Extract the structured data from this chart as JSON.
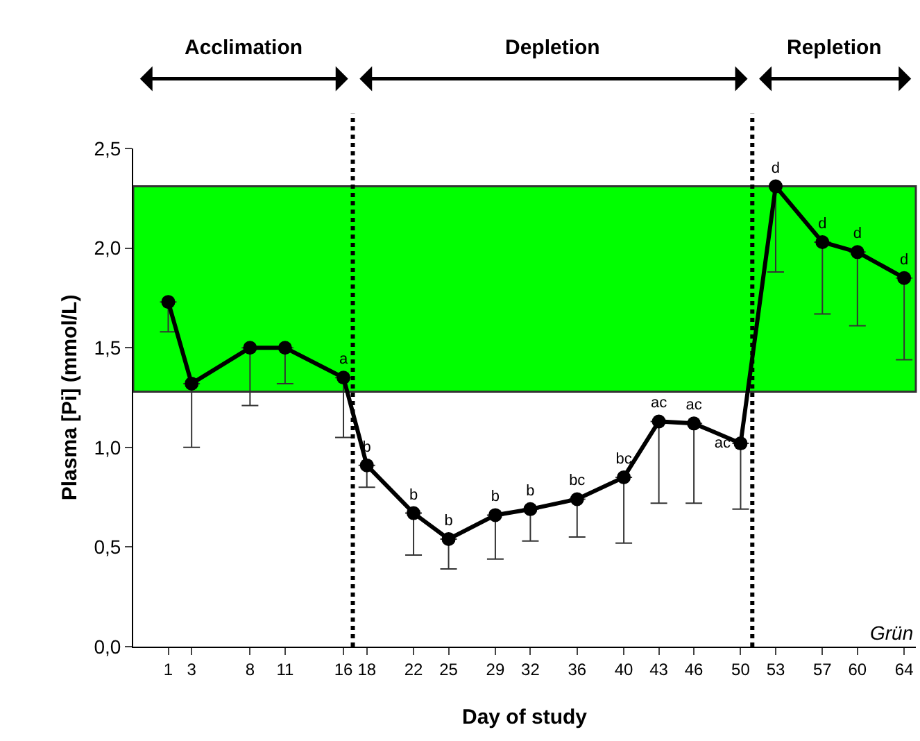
{
  "chart_data": {
    "type": "line",
    "xlabel": "Day of study",
    "ylabel": "Plasma [Pi] (mmol/L)",
    "annotations": [
      "Acclimation",
      "Depletion",
      "Repletion",
      "Grün"
    ],
    "x": [
      1,
      3,
      8,
      11,
      16,
      18,
      22,
      25,
      29,
      32,
      36,
      40,
      43,
      46,
      50,
      53,
      57,
      60,
      64
    ],
    "series": [
      {
        "color": "#000000",
        "values": [
          1.73,
          1.32,
          1.5,
          1.5,
          1.35,
          0.91,
          0.67,
          0.54,
          0.66,
          0.69,
          0.74,
          0.85,
          1.13,
          1.12,
          1.02,
          2.31,
          2.03,
          1.98,
          1.85
        ],
        "errors": [
          [
            1.58,
            1.73
          ],
          [
            1.0,
            1.32
          ],
          [
            1.21,
            1.5
          ],
          [
            1.32,
            1.5
          ],
          [
            1.05,
            1.35
          ],
          [
            0.8,
            0.91
          ],
          [
            0.46,
            0.67
          ],
          [
            0.39,
            0.54
          ],
          [
            0.44,
            0.66
          ],
          [
            0.53,
            0.69
          ],
          [
            0.55,
            0.74
          ],
          [
            0.52,
            0.85
          ],
          [
            0.72,
            1.13
          ],
          [
            0.72,
            1.12
          ],
          [
            0.69,
            1.02
          ],
          [
            1.88,
            2.31
          ],
          [
            1.67,
            2.03
          ],
          [
            1.61,
            1.98
          ],
          [
            1.44,
            1.85
          ]
        ],
        "value_labels": [
          null,
          null,
          null,
          null,
          "a",
          "b",
          "b",
          "b",
          "b",
          "b",
          "bc",
          "bc",
          "ac",
          "ac",
          "ac",
          "d",
          "d",
          "d",
          "d"
        ]
      }
    ],
    "xlim": [
      -2,
      65
    ],
    "xticks": [
      1,
      3,
      8,
      11,
      16,
      18,
      22,
      25,
      29,
      32,
      36,
      40,
      43,
      46,
      50,
      53,
      57,
      60,
      64
    ],
    "ylim": [
      0,
      2.5
    ],
    "yticks": [
      {
        "value": 0,
        "label": "0,0"
      },
      {
        "value": 0.5,
        "label": "0,5"
      },
      {
        "value": 1.0,
        "label": "1,0"
      },
      {
        "value": 1.5,
        "label": "1,5"
      },
      {
        "value": 2.0,
        "label": "2,0"
      },
      {
        "value": 2.5,
        "label": "2,5"
      }
    ],
    "bands": [
      {
        "axis": "y",
        "from": 1.28,
        "to": 2.31,
        "label": null,
        "color": "#00ff00"
      }
    ],
    "ref_lines": [
      {
        "axis": "x",
        "value": 16.8,
        "label": null,
        "line_style": "dotted"
      },
      {
        "axis": "x",
        "value": 51.0,
        "label": null,
        "line_style": "dotted"
      }
    ],
    "marker": "circle",
    "line_style": "solid"
  }
}
